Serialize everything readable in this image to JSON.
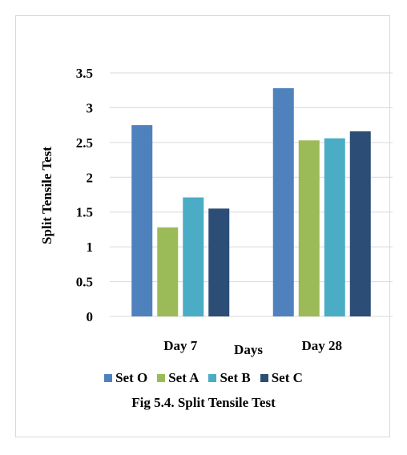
{
  "chart_data": {
    "type": "bar",
    "title": "",
    "xlabel": "Days",
    "ylabel": "Split Tensile Test",
    "categories": [
      "Day 7",
      "Day 28"
    ],
    "series": [
      {
        "name": "Set O",
        "values": [
          2.75,
          3.28
        ],
        "color": "#4f81bd"
      },
      {
        "name": "Set A",
        "values": [
          1.28,
          2.53
        ],
        "color": "#9bbb59"
      },
      {
        "name": "Set B",
        "values": [
          1.71,
          2.56
        ],
        "color": "#4bacc6"
      },
      {
        "name": "Set C",
        "values": [
          1.55,
          2.66
        ],
        "color": "#2c4d75"
      }
    ],
    "ylim": [
      0,
      3.5
    ],
    "yticks": [
      "0",
      "0.5",
      "1",
      "1.5",
      "2",
      "2.5",
      "3",
      "3.5"
    ],
    "grid": true,
    "legend": "bottom"
  },
  "caption": "Fig 5.4. Split Tensile Test"
}
